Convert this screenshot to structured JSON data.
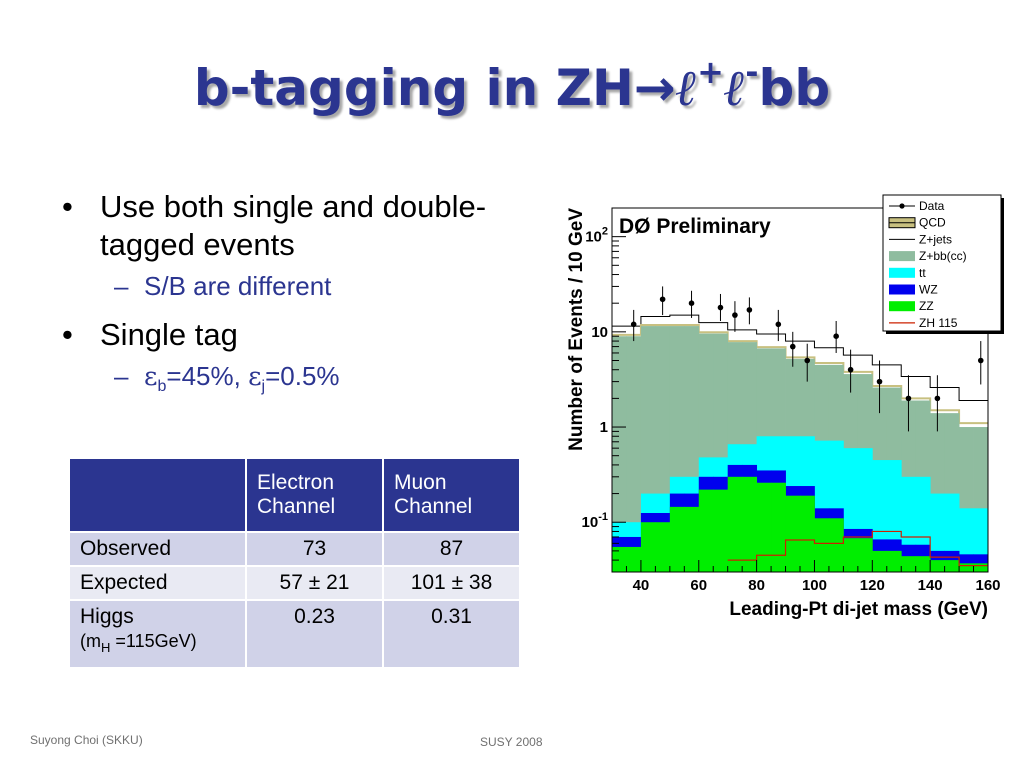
{
  "slide": {
    "title_main": "b-tagging in ZH",
    "title_arrow": "→",
    "title_l1": "ℓ",
    "title_plus": "+",
    "title_l2": "ℓ",
    "title_minus": "-",
    "title_end": "bb"
  },
  "bullets": {
    "b1": "Use both single and double-tagged events",
    "b1_sub": "S/B are different",
    "b2": "Single tag",
    "b2_sub": {
      "eps1": "ε",
      "sub1": "b",
      "mid": "=45%, ",
      "eps2": "ε",
      "sub2": "j",
      "end": "=0.5%"
    },
    "bullet_char": "•",
    "dash_char": "–"
  },
  "table": {
    "headers": [
      "",
      "Electron Channel",
      "Muon Channel"
    ],
    "rows": [
      [
        "Observed",
        "73",
        "87"
      ],
      [
        "Expected",
        "57 ± 21",
        "101 ± 38"
      ]
    ],
    "higgs_label": "Higgs",
    "higgs_mass_open": "(m",
    "higgs_mass_sub": "H",
    "higgs_mass_close": " =115GeV)",
    "higgs_values": [
      "0.23",
      "0.31"
    ]
  },
  "footer": {
    "author": "Suyong Choi (SKKU)",
    "event": "SUSY 2008"
  },
  "chart_data": {
    "type": "bar",
    "title": "DØ Preliminary",
    "xlabel": "Leading-Pt di-jet mass (GeV)",
    "ylabel": "Number of Events / 10 GeV",
    "log_y": true,
    "xlim": [
      30,
      160
    ],
    "ylim": [
      0.03,
      200
    ],
    "x_ticks": [
      40,
      60,
      80,
      100,
      120,
      140,
      160
    ],
    "y_ticks": [
      {
        "value": 0.1,
        "base": "10",
        "exp": "-1"
      },
      {
        "value": 1,
        "base": "1",
        "exp": ""
      },
      {
        "value": 10,
        "base": "10",
        "exp": ""
      },
      {
        "value": 100,
        "base": "10",
        "exp": "2"
      }
    ],
    "bin_edges": [
      30,
      35,
      40,
      45,
      50,
      55,
      60,
      65,
      70,
      75,
      80,
      85,
      90,
      95,
      100,
      105,
      110,
      115,
      120,
      125,
      130,
      135,
      140,
      145,
      150,
      155,
      160
    ],
    "colors": {
      "zbb": "#8fbc9f",
      "tt": "#00ffff",
      "wz": "#0000ee",
      "zz": "#00ee00",
      "zh": "#cc2200",
      "qcd": "#c8c080"
    },
    "series": [
      {
        "name": "Z+jets",
        "kind": "total",
        "values": [
          11.5,
          11.5,
          14.5,
          14.5,
          15,
          15,
          12.5,
          12.5,
          10.5,
          10.5,
          9.5,
          9.5,
          8,
          8,
          6.8,
          6.8,
          5.7,
          5.7,
          4.5,
          4.5,
          3.4,
          3.4,
          2.6,
          2.6,
          1.9,
          1.9
        ]
      },
      {
        "name": "QCD",
        "kind": "line",
        "values": [
          9.3,
          9.3,
          11.8,
          11.8,
          11.8,
          11.8,
          9.9,
          9.9,
          8.0,
          8.0,
          6.9,
          6.9,
          5.4,
          5.4,
          4.7,
          4.7,
          3.8,
          3.8,
          2.7,
          2.7,
          2.0,
          2.0,
          1.5,
          1.5,
          1.1,
          1.1
        ]
      },
      {
        "name": "Z+bb(cc)",
        "kind": "fill",
        "values": [
          9,
          9,
          11.5,
          11.5,
          11.5,
          11.5,
          9.6,
          9.6,
          7.8,
          7.8,
          6.7,
          6.7,
          5.2,
          5.2,
          4.5,
          4.5,
          3.6,
          3.6,
          2.6,
          2.6,
          1.9,
          1.9,
          1.4,
          1.4,
          1.0,
          1.0
        ]
      },
      {
        "name": "tt",
        "kind": "fill",
        "values": [
          0.1,
          0.1,
          0.2,
          0.2,
          0.3,
          0.3,
          0.48,
          0.48,
          0.66,
          0.66,
          0.8,
          0.8,
          0.8,
          0.8,
          0.72,
          0.72,
          0.6,
          0.6,
          0.45,
          0.45,
          0.3,
          0.3,
          0.2,
          0.2,
          0.14,
          0.14
        ]
      },
      {
        "name": "WZ",
        "kind": "fill",
        "values": [
          0.07,
          0.07,
          0.125,
          0.125,
          0.2,
          0.2,
          0.3,
          0.3,
          0.4,
          0.4,
          0.35,
          0.35,
          0.24,
          0.24,
          0.14,
          0.14,
          0.085,
          0.085,
          0.066,
          0.066,
          0.058,
          0.058,
          0.05,
          0.05,
          0.046,
          0.046
        ]
      },
      {
        "name": "ZZ",
        "kind": "fill",
        "values": [
          0.055,
          0.055,
          0.1,
          0.1,
          0.145,
          0.145,
          0.22,
          0.22,
          0.3,
          0.3,
          0.26,
          0.26,
          0.19,
          0.19,
          0.11,
          0.11,
          0.068,
          0.068,
          0.05,
          0.05,
          0.044,
          0.044,
          0.04,
          0.04,
          0.037,
          0.037
        ]
      },
      {
        "name": "ZH 115",
        "kind": "line",
        "values": [
          null,
          null,
          null,
          null,
          null,
          null,
          null,
          null,
          0.04,
          0.04,
          0.045,
          0.045,
          0.065,
          0.065,
          0.06,
          0.06,
          0.07,
          0.07,
          0.08,
          0.08,
          0.07,
          0.07,
          0.043,
          0.043,
          0.035,
          0.035
        ]
      },
      {
        "name": "Data",
        "kind": "points",
        "points": [
          {
            "x": 37.5,
            "y": 12,
            "lo": 8,
            "hi": 17
          },
          {
            "x": 47.5,
            "y": 22,
            "lo": 15,
            "hi": 30
          },
          {
            "x": 57.5,
            "y": 20,
            "lo": 14,
            "hi": 27
          },
          {
            "x": 67.5,
            "y": 18,
            "lo": 13,
            "hi": 25
          },
          {
            "x": 72.5,
            "y": 15,
            "lo": 10,
            "hi": 21
          },
          {
            "x": 77.5,
            "y": 17,
            "lo": 12,
            "hi": 23
          },
          {
            "x": 87.5,
            "y": 12,
            "lo": 8,
            "hi": 17
          },
          {
            "x": 92.5,
            "y": 7,
            "lo": 4.3,
            "hi": 10
          },
          {
            "x": 97.5,
            "y": 5,
            "lo": 3,
            "hi": 7.5
          },
          {
            "x": 107.5,
            "y": 9,
            "lo": 6,
            "hi": 13
          },
          {
            "x": 112.5,
            "y": 4,
            "lo": 2.3,
            "hi": 6.5
          },
          {
            "x": 122.5,
            "y": 3,
            "lo": 1.4,
            "hi": 5
          },
          {
            "x": 132.5,
            "y": 2,
            "lo": 0.9,
            "hi": 3.5
          },
          {
            "x": 142.5,
            "y": 2,
            "lo": 0.9,
            "hi": 3.5
          },
          {
            "x": 157.5,
            "y": 5,
            "lo": 2.8,
            "hi": 8
          }
        ]
      }
    ],
    "legend": {
      "placement": "top-right",
      "entries": [
        {
          "label": "Data",
          "style": "marker"
        },
        {
          "label": "QCD",
          "style": "qcd"
        },
        {
          "label": "Z+jets",
          "style": "white"
        },
        {
          "label": "Z+bb(cc)",
          "style": "zbb"
        },
        {
          "label": "tt",
          "style": "tt"
        },
        {
          "label": "WZ",
          "style": "wz"
        },
        {
          "label": "ZZ",
          "style": "zz"
        },
        {
          "label": "ZH 115",
          "style": "zh"
        }
      ]
    }
  }
}
